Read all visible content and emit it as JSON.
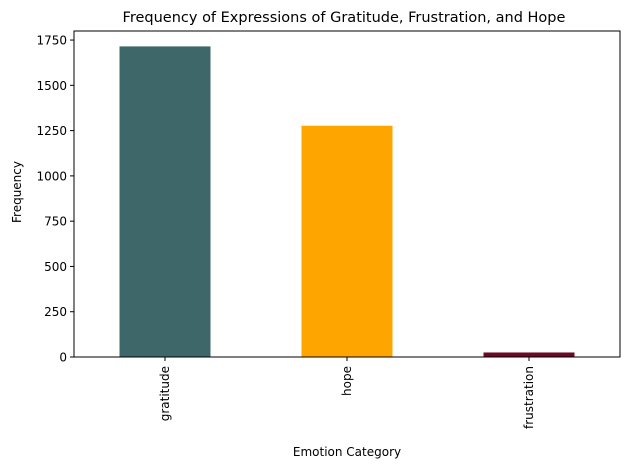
{
  "chart_data": {
    "type": "bar",
    "title": "Frequency of Expressions of Gratitude, Frustration, and Hope",
    "xlabel": "Emotion Category",
    "ylabel": "Frequency",
    "categories": [
      "gratitude",
      "hope",
      "frustration"
    ],
    "values": [
      1715,
      1277,
      25
    ],
    "colors": [
      "#3e6769",
      "#ffa500",
      "#6b0a26"
    ],
    "ylim": [
      0,
      1800
    ],
    "yticks": [
      0,
      250,
      500,
      750,
      1000,
      1250,
      1500,
      1750
    ],
    "grid": false,
    "legend": "none"
  }
}
